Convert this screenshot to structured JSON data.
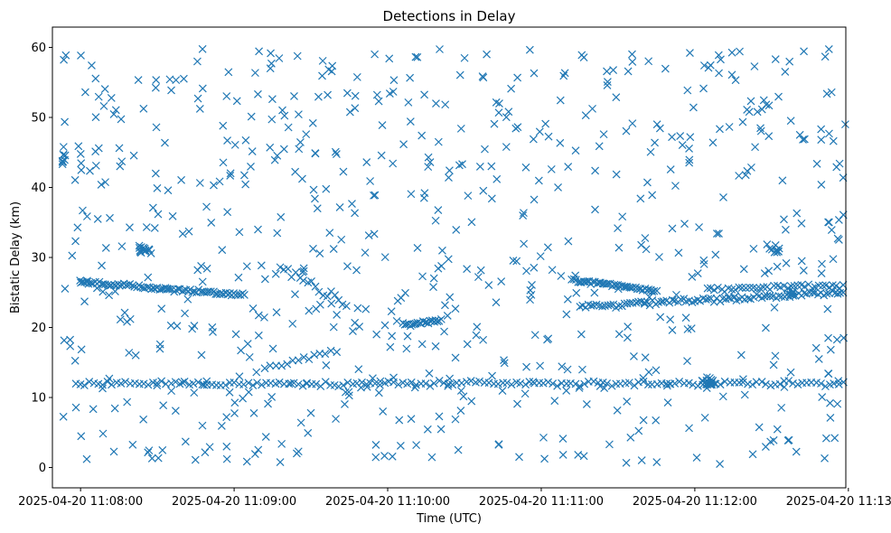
{
  "chart_data": {
    "type": "scatter",
    "title": "Detections in Delay",
    "xlabel": "Time (UTC)",
    "ylabel": "Bistatic Delay (km)",
    "marker": "x",
    "color": "#1f77b4",
    "grid": false,
    "x_unit": "time",
    "xlim": [
      "2025-04-20 11:07:49",
      "2025-04-20 11:12:59"
    ],
    "ylim": [
      -2.9,
      62.9
    ],
    "x_ticks": [
      "2025-04-20 11:08:00",
      "2025-04-20 11:09:00",
      "2025-04-20 11:10:00",
      "2025-04-20 11:11:00",
      "2025-04-20 11:12:00",
      "2025-04-20 11:13:00"
    ],
    "y_ticks": [
      0,
      10,
      20,
      30,
      40,
      50,
      60
    ],
    "tracks": [
      {
        "x_start": "2025-04-20 11:07:58",
        "x_end": "2025-04-20 11:12:58",
        "y_start": 12.0,
        "y_end": 12.0,
        "n": 170,
        "noise": 0.3
      },
      {
        "x_start": "2025-04-20 11:08:00",
        "x_end": "2025-04-20 11:09:04",
        "y_start": 26.5,
        "y_end": 24.6,
        "n": 80,
        "noise": 0.25
      },
      {
        "x_start": "2025-04-20 11:11:12",
        "x_end": "2025-04-20 11:11:45",
        "y_start": 26.8,
        "y_end": 25.3,
        "n": 45,
        "noise": 0.2
      },
      {
        "x_start": "2025-04-20 11:11:15",
        "x_end": "2025-04-20 11:12:58",
        "y_start": 23.0,
        "y_end": 25.0,
        "n": 95,
        "noise": 0.3
      },
      {
        "x_start": "2025-04-20 11:12:05",
        "x_end": "2025-04-20 11:12:58",
        "y_start": 25.5,
        "y_end": 26.0,
        "n": 40,
        "noise": 0.3
      },
      {
        "x_start": "2025-04-20 11:10:06",
        "x_end": "2025-04-20 11:10:21",
        "y_start": 20.5,
        "y_end": 21.0,
        "n": 22,
        "noise": 0.2
      },
      {
        "x_start": "2025-04-20 11:09:18",
        "x_end": "2025-04-20 11:09:44",
        "y_start": 28.5,
        "y_end": 23.5,
        "n": 18,
        "noise": 0.6
      },
      {
        "x_start": "2025-04-20 11:09:12",
        "x_end": "2025-04-20 11:09:40",
        "y_start": 14.3,
        "y_end": 16.8,
        "n": 14,
        "noise": 0.3
      }
    ],
    "clusters": [
      {
        "x": "2025-04-20 11:08:25",
        "y": 31.0,
        "n": 14,
        "spread_s": 2.5,
        "spread_y": 0.6
      },
      {
        "x": "2025-04-20 11:12:32",
        "y": 31.0,
        "n": 8,
        "spread_s": 2.0,
        "spread_y": 0.5
      },
      {
        "x": "2025-04-20 11:12:05",
        "y": 12.2,
        "n": 18,
        "spread_s": 3.0,
        "spread_y": 0.6
      },
      {
        "x": "2025-04-20 11:07:53",
        "y": 44.0,
        "n": 8,
        "spread_s": 1.0,
        "spread_y": 1.2
      },
      {
        "x": "2025-04-20 11:12:38",
        "y": 24.8,
        "n": 6,
        "spread_s": 1.5,
        "spread_y": 0.5
      }
    ],
    "scattered_points": {
      "n": 700,
      "x_range": [
        "2025-04-20 11:07:53",
        "2025-04-20 11:12:59"
      ],
      "y_range": [
        0.5,
        59.8
      ],
      "distribution": "uniform"
    }
  }
}
